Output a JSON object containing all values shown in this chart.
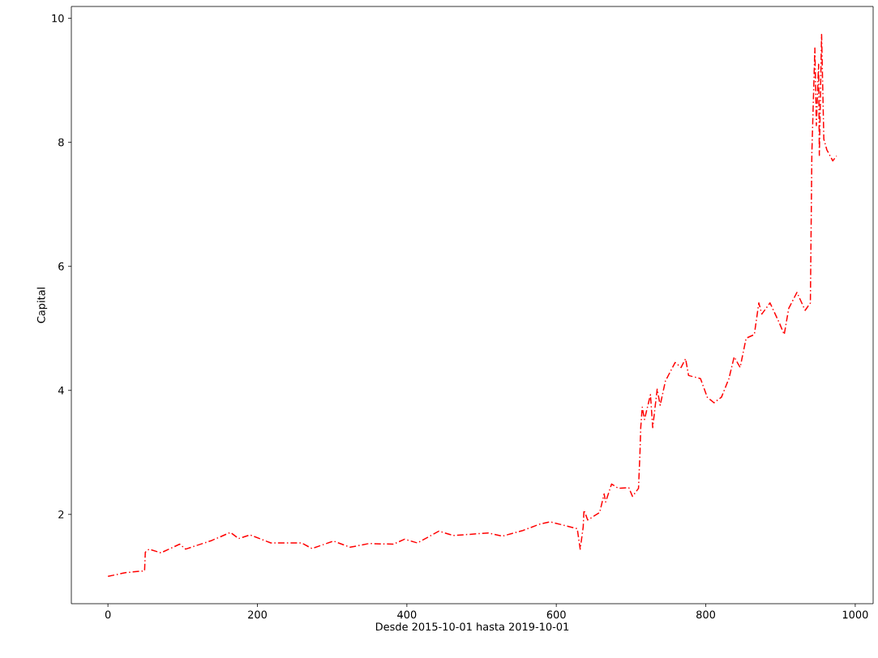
{
  "chart_data": {
    "type": "line",
    "xlabel": "Desde 2015-10-01 hasta 2019-10-01",
    "ylabel": "Capital",
    "xlim": [
      -49,
      1024
    ],
    "ylim": [
      0.56,
      10.19
    ],
    "xticks": [
      0,
      200,
      400,
      600,
      800,
      1000
    ],
    "yticks": [
      2,
      4,
      6,
      8,
      10
    ],
    "grid": false,
    "line_style": "dashdot",
    "marker": "none",
    "series": [
      {
        "color": "#ff0000",
        "x": [
          0,
          23,
          49,
          50,
          55,
          71,
          96,
          104,
          139,
          164,
          175,
          190,
          218,
          259,
          273,
          302,
          324,
          349,
          382,
          397,
          414,
          443,
          462,
          509,
          528,
          555,
          577,
          592,
          628,
          632,
          636,
          637,
          642,
          658,
          664,
          666,
          674,
          683,
          697,
          702,
          710,
          712,
          713,
          715,
          718,
          726,
          729,
          735,
          739,
          746,
          759,
          767,
          773,
          777,
          793,
          802,
          811,
          821,
          831,
          838,
          846,
          854,
          865,
          871,
          875,
          886,
          898,
          905,
          911,
          922,
          933,
          940,
          942,
          946,
          948,
          951,
          952,
          955,
          958,
          962,
          970,
          975
        ],
        "values": [
          1.0,
          1.06,
          1.09,
          1.39,
          1.44,
          1.38,
          1.52,
          1.44,
          1.58,
          1.71,
          1.61,
          1.67,
          1.54,
          1.54,
          1.45,
          1.57,
          1.47,
          1.53,
          1.52,
          1.6,
          1.54,
          1.73,
          1.66,
          1.7,
          1.65,
          1.74,
          1.84,
          1.88,
          1.77,
          1.44,
          1.8,
          2.07,
          1.91,
          2.03,
          2.33,
          2.2,
          2.49,
          2.42,
          2.43,
          2.29,
          2.42,
          3.01,
          3.4,
          3.73,
          3.53,
          3.93,
          3.4,
          4.02,
          3.76,
          4.15,
          4.45,
          4.37,
          4.51,
          4.24,
          4.19,
          3.89,
          3.8,
          3.89,
          4.19,
          4.54,
          4.37,
          4.84,
          4.9,
          5.41,
          5.23,
          5.41,
          5.1,
          4.9,
          5.32,
          5.58,
          5.29,
          5.41,
          7.83,
          9.52,
          8.27,
          9.26,
          7.79,
          9.74,
          8.05,
          7.88,
          7.7,
          7.78
        ]
      }
    ]
  }
}
